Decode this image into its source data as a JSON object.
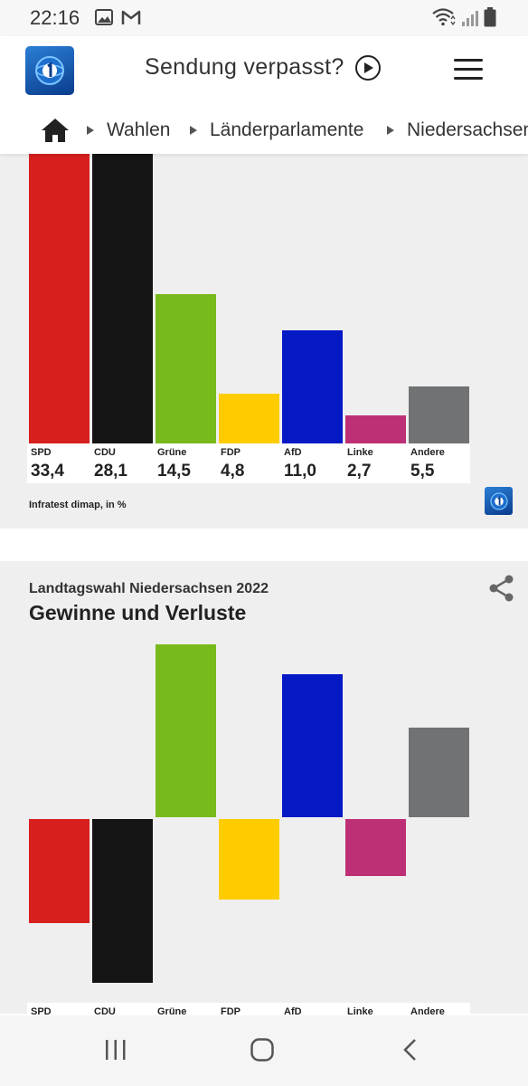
{
  "status_bar": {
    "time": "22:16"
  },
  "header": {
    "title": "Sendung verpasst?",
    "breadcrumbs": [
      "Wahlen",
      "Länderparlamente",
      "Niedersachsen"
    ]
  },
  "chart1": {
    "source": "Infratest dimap, in %"
  },
  "chart2": {
    "supertitle": "Landtagswahl Niedersachsen 2022",
    "title": "Gewinne und Verluste"
  },
  "chart_data": [
    {
      "type": "bar",
      "categories": [
        "SPD",
        "CDU",
        "Grüne",
        "FDP",
        "AfD",
        "Linke",
        "Andere"
      ],
      "values": [
        33.4,
        28.1,
        14.5,
        4.8,
        11.0,
        2.7,
        5.5
      ],
      "value_labels": [
        "33,4",
        "28,1",
        "14,5",
        "4,8",
        "11,0",
        "2,7",
        "5,5"
      ],
      "colors": [
        "#d71f1f",
        "#141414",
        "#78b91c",
        "#ffcc00",
        "#0519c5",
        "#be3075",
        "#707273"
      ],
      "source": "Infratest dimap, in %"
    },
    {
      "type": "bar",
      "supertitle": "Landtagswahl Niedersachsen 2022",
      "title": "Gewinne und Verluste",
      "categories": [
        "SPD",
        "CDU",
        "Grüne",
        "FDP",
        "AfD",
        "Linke",
        "Andere"
      ],
      "values": [
        -3.5,
        -5.5,
        5.8,
        -2.7,
        4.8,
        -1.9,
        3.0
      ],
      "colors": [
        "#d71f1f",
        "#141414",
        "#78b91c",
        "#ffcc00",
        "#0519c5",
        "#be3075",
        "#707273"
      ]
    }
  ],
  "colors": {
    "accent": "#0a3c8c",
    "card_bg": "#efefef"
  },
  "icons": {
    "status": [
      "gallery-icon",
      "gmail-icon",
      "wifi-icon",
      "signal-icon",
      "battery-icon"
    ],
    "nav": [
      "recent-apps-icon",
      "home-nav-icon",
      "back-icon"
    ]
  }
}
